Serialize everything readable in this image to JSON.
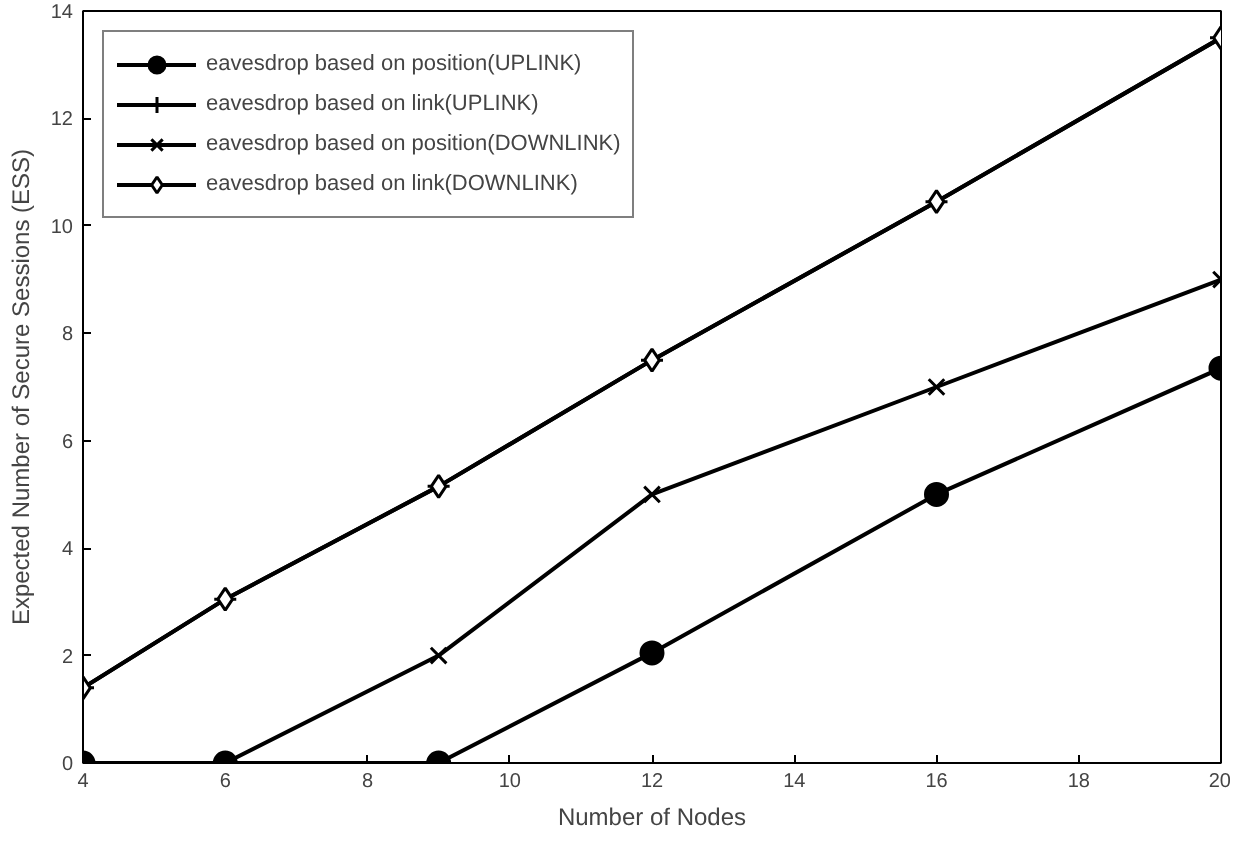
{
  "chart_data": {
    "type": "line",
    "xlabel": "Number of Nodes",
    "ylabel": "Expected Number of Secure Sessions (ESS)",
    "x": [
      4,
      6,
      9,
      12,
      16,
      20
    ],
    "series": [
      {
        "name": "eavesdrop based on position(UPLINK)",
        "color": "#000000",
        "marker": "circle",
        "values": [
          0,
          0,
          0,
          2.05,
          5,
          7.35
        ]
      },
      {
        "name": "eavesdrop based on link(UPLINK)",
        "color": "#000000",
        "marker": "cross",
        "values": [
          1.4,
          3.05,
          5.15,
          7.5,
          10.45,
          13.5
        ]
      },
      {
        "name": "eavesdrop based on position(DOWNLINK)",
        "color": "#000000",
        "marker": "x",
        "values": [
          0,
          0,
          2,
          5,
          7,
          9
        ]
      },
      {
        "name": "eavesdrop based on link(DOWNLINK)",
        "color": "#000000",
        "marker": "diamond",
        "values": [
          1.4,
          3.05,
          5.15,
          7.5,
          10.45,
          13.5
        ]
      }
    ],
    "xlim": [
      4,
      20
    ],
    "xticks": [
      4,
      6,
      8,
      10,
      12,
      14,
      16,
      18,
      20
    ],
    "ylim": [
      0,
      14
    ],
    "yticks": [
      0,
      2,
      4,
      6,
      8,
      10,
      12,
      14
    ],
    "grid": false,
    "legend": "top left",
    "line_style": "solid"
  }
}
